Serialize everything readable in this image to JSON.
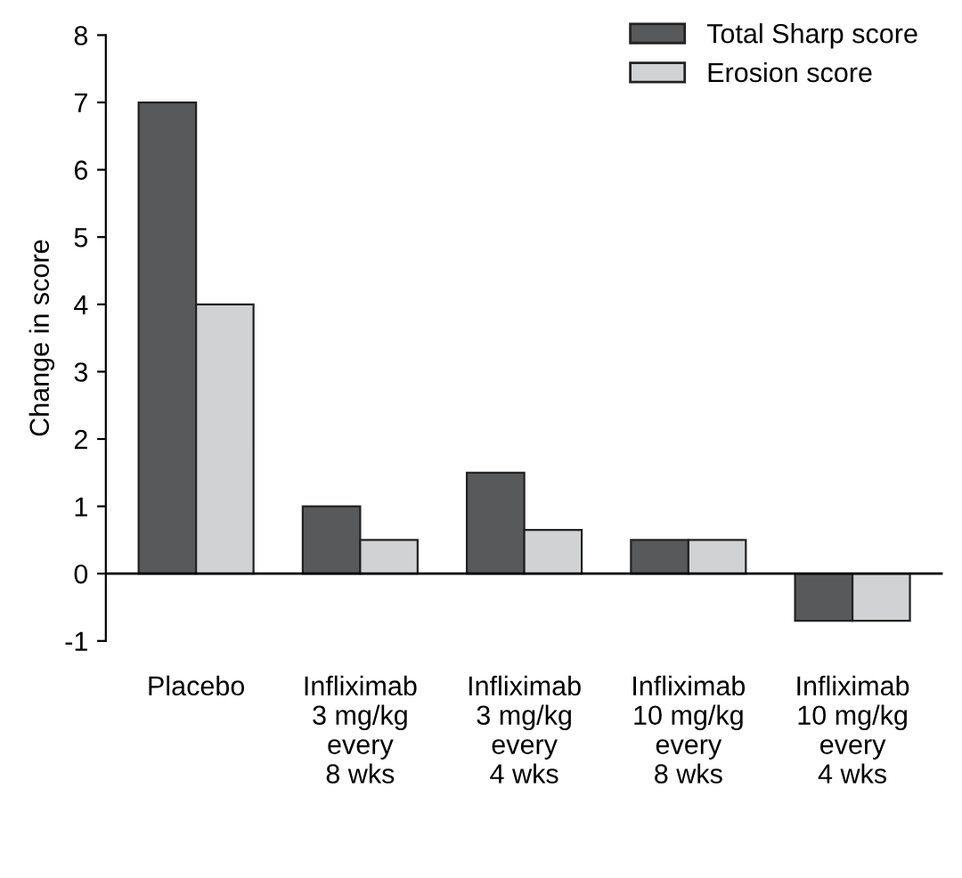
{
  "chart_data": {
    "type": "bar",
    "ylabel": "Change in score",
    "categories": [
      "Placebo",
      "Infliximab\n3 mg/kg\nevery\n8 wks",
      "Infliximab\n3 mg/kg\nevery\n4 wks",
      "Infliximab\n10 mg/kg\nevery\n8 wks",
      "Infliximab\n10 mg/kg\nevery\n4 wks"
    ],
    "series": [
      {
        "name": "Total Sharp score",
        "color": "#58595b",
        "values": [
          7.0,
          1.0,
          1.5,
          0.5,
          -0.7
        ]
      },
      {
        "name": "Erosion score",
        "color": "#d1d2d4",
        "values": [
          4.0,
          0.5,
          0.65,
          0.5,
          -0.7
        ]
      }
    ],
    "ylim": [
      -1,
      8
    ],
    "yticks": [
      -1,
      0,
      1,
      2,
      3,
      4,
      5,
      6,
      7,
      8
    ],
    "ref_lines": [
      {
        "axis": "y",
        "value": 0,
        "color": "#000000"
      }
    ],
    "grid": false,
    "legend": "top right"
  }
}
